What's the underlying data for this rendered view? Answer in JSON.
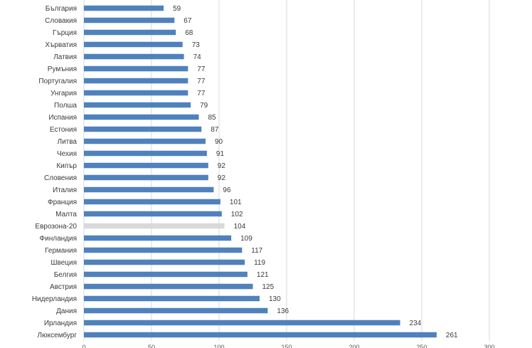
{
  "chart_data": {
    "type": "bar",
    "orientation": "horizontal",
    "title": "",
    "xlabel": "",
    "ylabel": "",
    "xlim": [
      0,
      300
    ],
    "x_ticks": [
      0,
      50,
      100,
      150,
      200,
      250,
      300
    ],
    "grid": "vertical",
    "legend": "none",
    "data_labels": true,
    "colors": {
      "bar": "#4f81bd",
      "highlight": "#d9d9d9",
      "grid": "#d9d9d9"
    },
    "highlight_category": "Еврозона-20",
    "categories": [
      "България",
      "Словакия",
      "Гърция",
      "Хърватия",
      "Латвия",
      "Румъния",
      "Португалия",
      "Унгария",
      "Полша",
      "Испания",
      "Естония",
      "Литва",
      "Чехия",
      "Кипър",
      "Словения",
      "Италия",
      "Франция",
      "Малта",
      "Еврозона-20",
      "Финландия",
      "Германия",
      "Швеция",
      "Белгия",
      "Австрия",
      "Нидерландия",
      "Дания",
      "Ирландия",
      "Люксембург"
    ],
    "values": [
      59,
      67,
      68,
      73,
      74,
      77,
      77,
      77,
      79,
      85,
      87,
      90,
      91,
      92,
      92,
      96,
      101,
      102,
      104,
      109,
      117,
      119,
      121,
      125,
      130,
      136,
      234,
      261
    ]
  }
}
